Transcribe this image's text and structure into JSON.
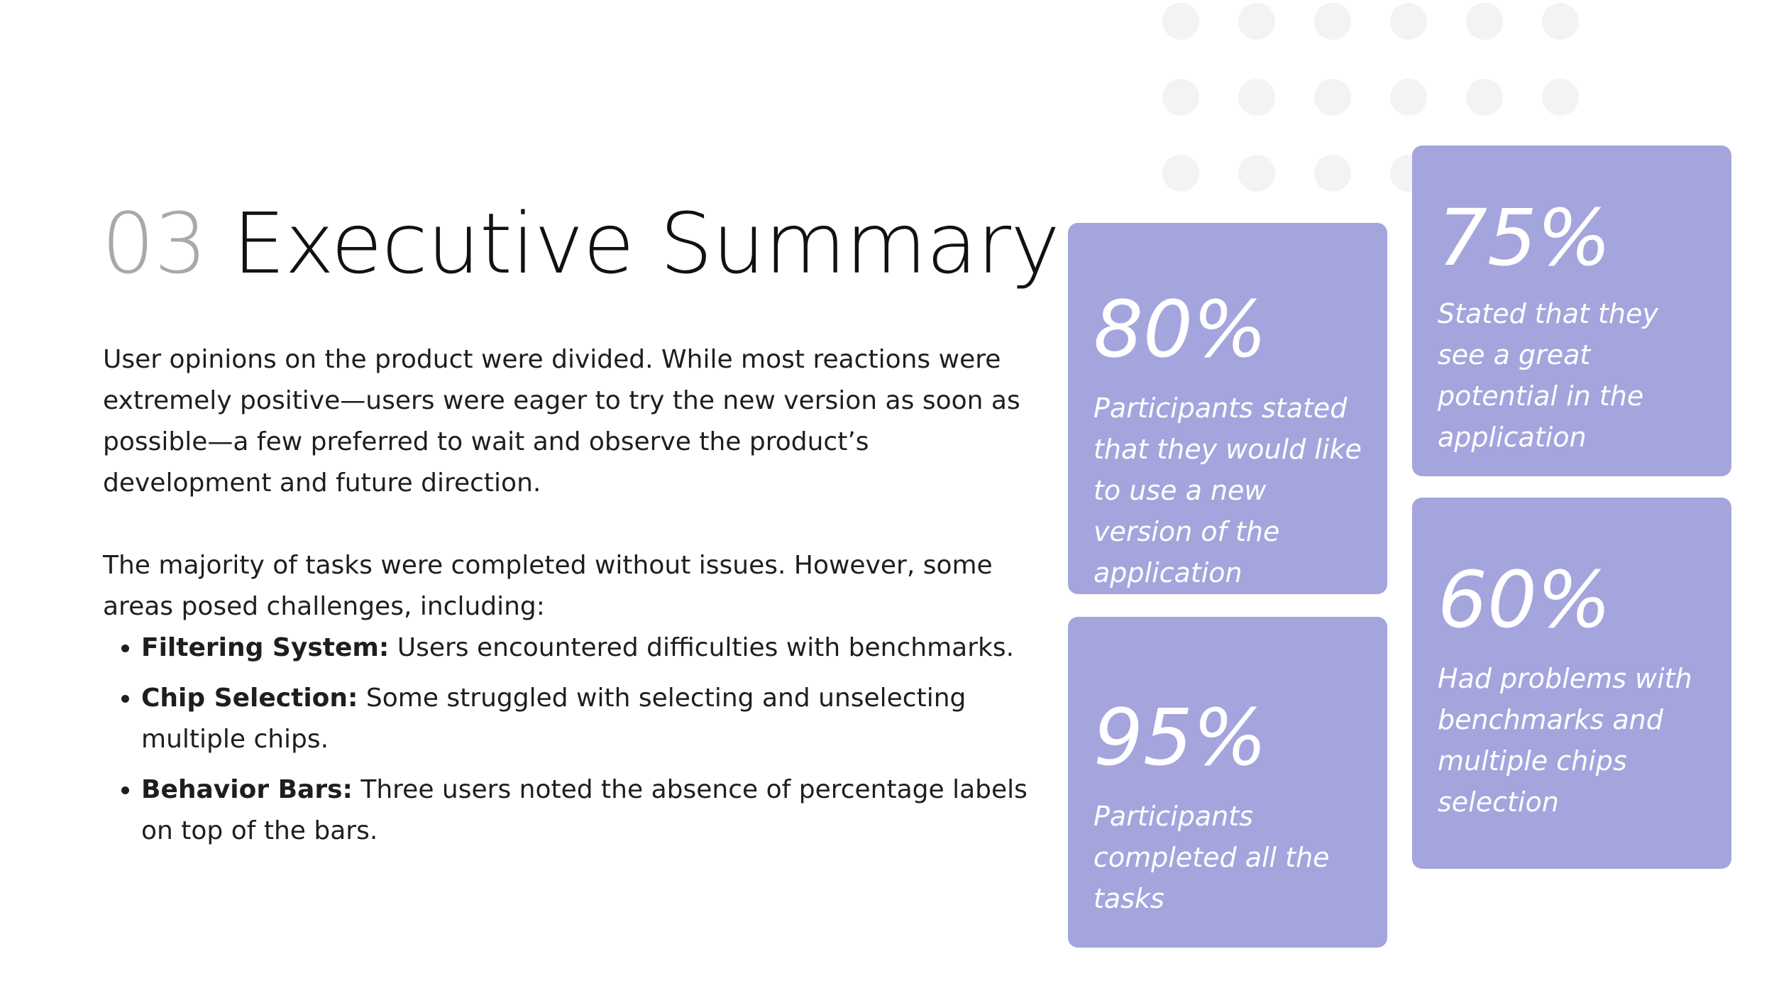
{
  "slide": {
    "number": "03",
    "title": "Executive Summary",
    "paragraph1": "User opinions on the product were divided. While most reactions were extremely positive—users were eager to try the new version as soon as possible—a few preferred to wait and observe the product’s development and future direction.",
    "paragraph2": "The majority of tasks were completed without issues. However, some areas posed challenges, including:",
    "bullets": [
      {
        "label": "Filtering System:",
        "text": " Users encountered difficulties with benchmarks."
      },
      {
        "label": "Chip Selection:",
        "text": " Some struggled with selecting and unselecting multiple chips."
      },
      {
        "label": "Behavior Bars:",
        "text": " Three users noted the absence of percentage labels on top of the bars."
      }
    ]
  },
  "stats": [
    {
      "value": "80%",
      "description": "Participants stated that they would like to use a new version of the application"
    },
    {
      "value": "95%",
      "description": "Participants completed all the tasks"
    },
    {
      "value": "75%",
      "description": "Stated that they see a great potential in the application"
    },
    {
      "value": "60%",
      "description": "Had problems with benchmarks and multiple chips selection"
    }
  ],
  "colors": {
    "card_background": "#a4a5dd",
    "title_number": "#a9a9a9",
    "title_text": "#111111",
    "decorative_dots": "#f3f3f3"
  }
}
